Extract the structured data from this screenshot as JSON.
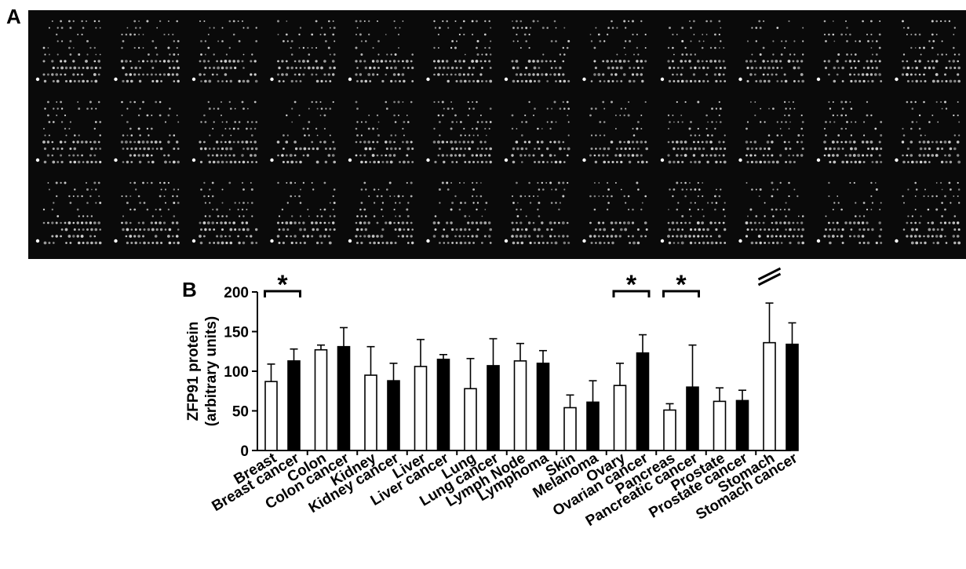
{
  "panel_a": {
    "label": "A"
  },
  "panel_b": {
    "label": "B"
  },
  "chart_data": {
    "type": "bar",
    "ylabel_line1": "ZFP91 protein",
    "ylabel_line2": "(arbitrary units)",
    "ylim": [
      0,
      200
    ],
    "yticks": [
      "0",
      "50",
      "100",
      "150",
      "200"
    ],
    "grid": false,
    "categories": [
      "Breast",
      "Breast cancer",
      "Colon",
      "Colon cancer",
      "Kidney",
      "Kidney cancer",
      "Liver",
      "Liver cancer",
      "Lung",
      "Lung cancer",
      "Lymph Node",
      "Lymphoma",
      "Skin",
      "Melanoma",
      "Ovary",
      "Ovarian cancer",
      "Pancreas",
      "Pancreatic cancer",
      "Prostate",
      "Prostate cancer",
      "Stomach",
      "Stomach cancer"
    ],
    "values": [
      87,
      113,
      127,
      131,
      95,
      88,
      106,
      115,
      78,
      107,
      113,
      110,
      54,
      61,
      82,
      123,
      51,
      80,
      62,
      63,
      136,
      134
    ],
    "errors": [
      22,
      15,
      6,
      24,
      36,
      22,
      34,
      6,
      38,
      34,
      22,
      16,
      16,
      27,
      28,
      23,
      8,
      53,
      17,
      13,
      50,
      27
    ],
    "bar_fill": [
      "#ffffff",
      "#000000",
      "#ffffff",
      "#000000",
      "#ffffff",
      "#000000",
      "#ffffff",
      "#000000",
      "#ffffff",
      "#000000",
      "#ffffff",
      "#000000",
      "#ffffff",
      "#000000",
      "#ffffff",
      "#000000",
      "#ffffff",
      "#000000",
      "#ffffff",
      "#000000",
      "#ffffff",
      "#000000"
    ],
    "significance": [
      {
        "pair": [
          0,
          1
        ],
        "label": "*"
      },
      {
        "pair": [
          14,
          15
        ],
        "label": "*"
      },
      {
        "pair": [
          16,
          17
        ],
        "label": "*"
      }
    ],
    "axis_break_on_category": 20
  }
}
